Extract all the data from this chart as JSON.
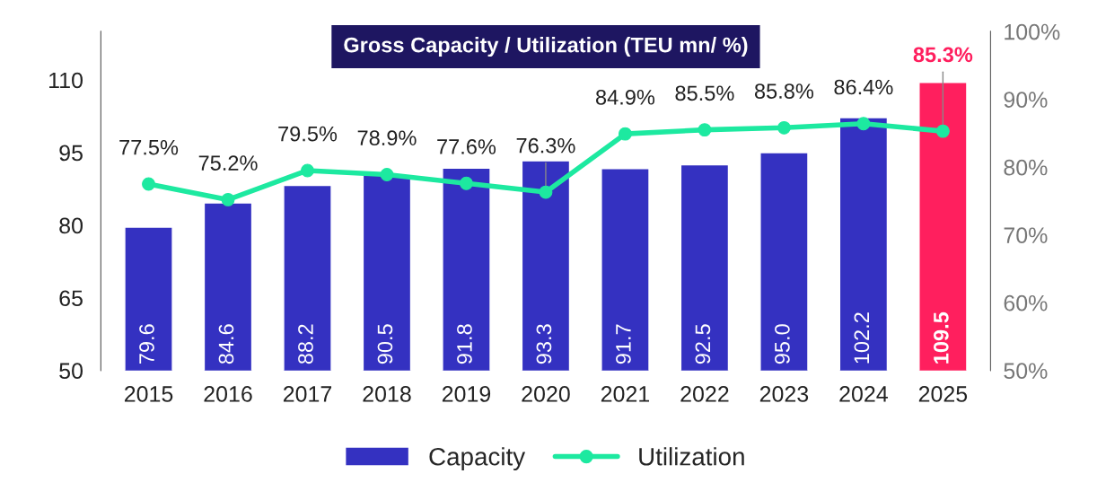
{
  "chart_data": {
    "type": "bar",
    "title": "Gross Capacity / Utilization (TEU mn/ %)",
    "categories": [
      "2015",
      "2016",
      "2017",
      "2018",
      "2019",
      "2020",
      "2021",
      "2022",
      "2023",
      "2024",
      "2025"
    ],
    "series": [
      {
        "name": "Capacity",
        "color": "#3431c1",
        "colors": [
          "#3431c1",
          "#3431c1",
          "#3431c1",
          "#3431c1",
          "#3431c1",
          "#3431c1",
          "#3431c1",
          "#3431c1",
          "#3431c1",
          "#3431c1",
          "#ff1f5e"
        ],
        "values": [
          79.6,
          84.6,
          88.2,
          90.5,
          91.8,
          93.3,
          91.7,
          92.5,
          95.0,
          102.2,
          109.5
        ],
        "value_labels": [
          "79.6",
          "84.6",
          "88.2",
          "90.5",
          "91.8",
          "93.3",
          "91.7",
          "92.5",
          "95.0",
          "102.2",
          "109.5"
        ]
      },
      {
        "name": "Utilization",
        "type": "line",
        "axis": "y2",
        "color": "#1de9a0",
        "marker": "circle",
        "values": [
          77.5,
          75.2,
          79.5,
          78.9,
          77.6,
          76.3,
          84.9,
          85.5,
          85.8,
          86.4,
          85.3
        ],
        "value_labels": [
          "77.5%",
          "75.2%",
          "79.5%",
          "78.9%",
          "77.6%",
          "76.3%",
          "84.9%",
          "85.5%",
          "85.8%",
          "86.4%",
          "85.3%"
        ]
      }
    ],
    "ylim": [
      50,
      120
    ],
    "yticks": [
      50,
      65,
      80,
      95,
      110
    ],
    "y2lim": [
      50,
      100
    ],
    "y2ticks": [
      {
        "value": 50,
        "label": "50%"
      },
      {
        "value": 60,
        "label": "60%"
      },
      {
        "value": 70,
        "label": "70%"
      },
      {
        "value": 80,
        "label": "80%"
      },
      {
        "value": 90,
        "label": "90%"
      },
      {
        "value": 100,
        "label": "100%"
      }
    ],
    "grid": false,
    "legend": "bottom"
  }
}
